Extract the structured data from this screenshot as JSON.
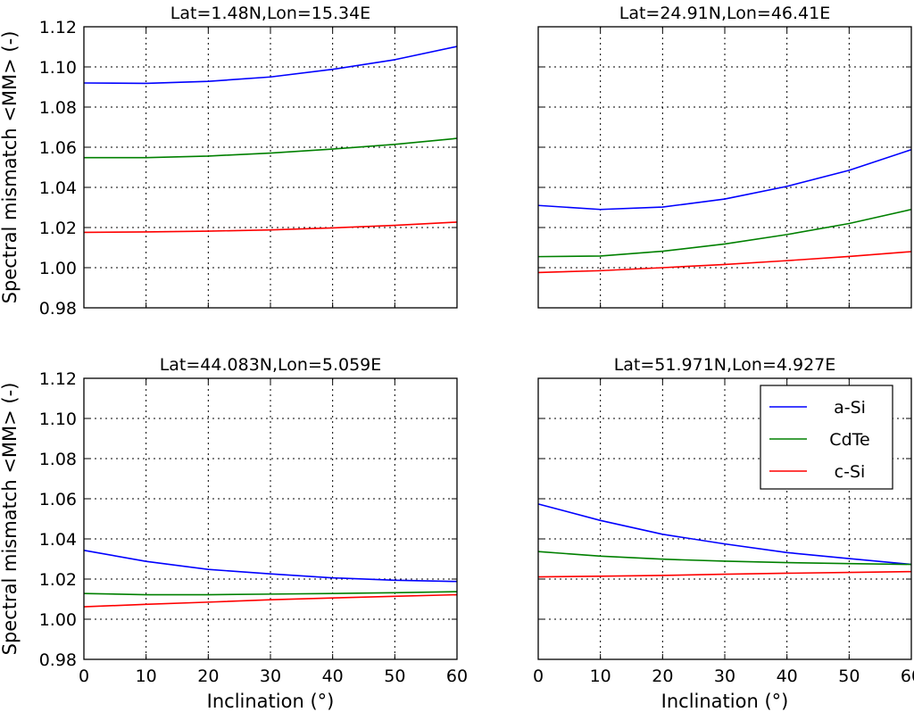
{
  "chart_data": [
    {
      "type": "line",
      "title": "Lat=1.48N,Lon=15.34E",
      "xlabel": "",
      "ylabel": "Spectral mismatch <MM>  (-)",
      "xlim": [
        0,
        60
      ],
      "ylim": [
        0.98,
        1.12
      ],
      "xticks": [
        "0",
        "10",
        "20",
        "30",
        "40",
        "50",
        "60"
      ],
      "yticks": [
        "0.98",
        "1.00",
        "1.02",
        "1.04",
        "1.06",
        "1.08",
        "1.10",
        "1.12"
      ],
      "show_xticklabels": false,
      "show_yticklabels": true,
      "grid": true,
      "x": [
        0,
        10,
        20,
        30,
        40,
        50,
        60
      ],
      "series": [
        {
          "name": "a-Si",
          "color": "#0000ff",
          "values": [
            1.092,
            1.0918,
            1.0928,
            1.095,
            1.0988,
            1.1036,
            1.1102
          ]
        },
        {
          "name": "CdTe",
          "color": "#008000",
          "values": [
            1.0548,
            1.0548,
            1.0556,
            1.0571,
            1.0591,
            1.0614,
            1.0644
          ]
        },
        {
          "name": "c-Si",
          "color": "#ff0000",
          "values": [
            1.0176,
            1.0178,
            1.0182,
            1.0188,
            1.0198,
            1.0211,
            1.0227
          ]
        }
      ]
    },
    {
      "type": "line",
      "title": "Lat=24.91N,Lon=46.41E",
      "xlabel": "",
      "ylabel": "",
      "xlim": [
        0,
        60
      ],
      "ylim": [
        0.98,
        1.12
      ],
      "xticks": [
        "0",
        "10",
        "20",
        "30",
        "40",
        "50",
        "60"
      ],
      "yticks": [
        "0.98",
        "1.00",
        "1.02",
        "1.04",
        "1.06",
        "1.08",
        "1.10",
        "1.12"
      ],
      "show_xticklabels": false,
      "show_yticklabels": false,
      "grid": true,
      "x": [
        0,
        10,
        20,
        30,
        40,
        50,
        60
      ],
      "series": [
        {
          "name": "a-Si",
          "color": "#0000ff",
          "values": [
            1.031,
            1.029,
            1.0302,
            1.0342,
            1.0405,
            1.0485,
            1.0588
          ]
        },
        {
          "name": "CdTe",
          "color": "#008000",
          "values": [
            1.0055,
            1.0058,
            1.0082,
            1.0118,
            1.0165,
            1.022,
            1.029
          ]
        },
        {
          "name": "c-Si",
          "color": "#ff0000",
          "values": [
            0.9976,
            0.9985,
            1.0,
            1.0016,
            1.0035,
            1.0056,
            1.008
          ]
        }
      ]
    },
    {
      "type": "line",
      "title": "Lat=44.083N,Lon=5.059E",
      "xlabel": "Inclination (°)",
      "ylabel": "Spectral mismatch <MM>  (-)",
      "xlim": [
        0,
        60
      ],
      "ylim": [
        0.98,
        1.12
      ],
      "xticks": [
        "0",
        "10",
        "20",
        "30",
        "40",
        "50",
        "60"
      ],
      "yticks": [
        "0.98",
        "1.00",
        "1.02",
        "1.04",
        "1.06",
        "1.08",
        "1.10",
        "1.12"
      ],
      "show_xticklabels": true,
      "show_yticklabels": true,
      "grid": true,
      "x": [
        0,
        10,
        20,
        30,
        40,
        50,
        60
      ],
      "series": [
        {
          "name": "a-Si",
          "color": "#0000ff",
          "values": [
            1.0343,
            1.0288,
            1.0248,
            1.0226,
            1.0206,
            1.0194,
            1.0188
          ]
        },
        {
          "name": "CdTe",
          "color": "#008000",
          "values": [
            1.0128,
            1.0122,
            1.0122,
            1.0125,
            1.0128,
            1.0132,
            1.0137
          ]
        },
        {
          "name": "c-Si",
          "color": "#ff0000",
          "values": [
            1.0062,
            1.0074,
            1.0085,
            1.0097,
            1.0106,
            1.0114,
            1.0122
          ]
        }
      ]
    },
    {
      "type": "line",
      "title": "Lat=51.971N,Lon=4.927E",
      "xlabel": "Inclination (°)",
      "ylabel": "",
      "xlim": [
        0,
        60
      ],
      "ylim": [
        0.98,
        1.12
      ],
      "xticks": [
        "0",
        "10",
        "20",
        "30",
        "40",
        "50",
        "60"
      ],
      "yticks": [
        "0.98",
        "1.00",
        "1.02",
        "1.04",
        "1.06",
        "1.08",
        "1.10",
        "1.12"
      ],
      "show_xticklabels": true,
      "show_yticklabels": false,
      "grid": true,
      "legend": {
        "placement": "top-right",
        "entries": [
          "a-Si",
          "CdTe",
          "c-Si"
        ]
      },
      "x": [
        0,
        10,
        20,
        30,
        40,
        50,
        60
      ],
      "series": [
        {
          "name": "a-Si",
          "color": "#0000ff",
          "values": [
            1.0574,
            1.0492,
            1.0423,
            1.0375,
            1.0332,
            1.0302,
            1.0273
          ]
        },
        {
          "name": "CdTe",
          "color": "#008000",
          "values": [
            1.0337,
            1.0314,
            1.0299,
            1.0289,
            1.0282,
            1.0277,
            1.0273
          ]
        },
        {
          "name": "c-Si",
          "color": "#ff0000",
          "values": [
            1.0211,
            1.0214,
            1.0218,
            1.0224,
            1.0229,
            1.0233,
            1.0237
          ]
        }
      ]
    }
  ]
}
